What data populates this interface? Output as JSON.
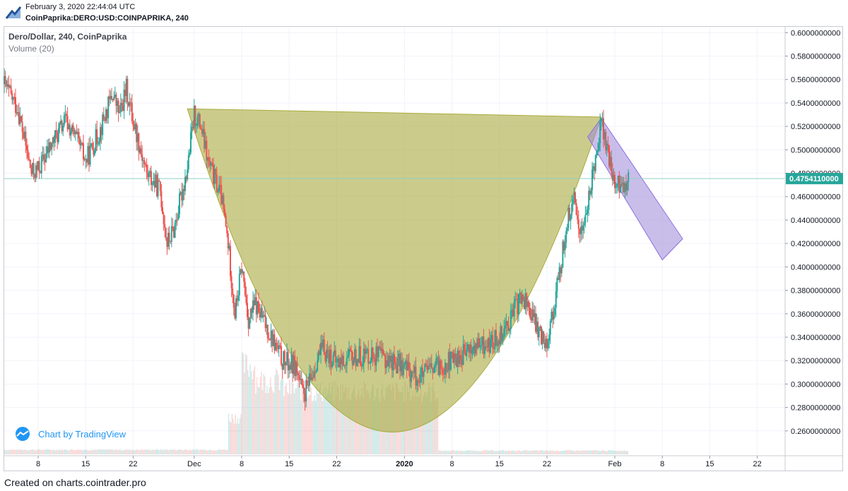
{
  "header": {
    "timestamp": "February 3, 2020 22:44:04 UTC",
    "symbol": "CoinPaprika:DERO:USD:COINPAPRIKA, 240",
    "logo_icon": "chart-arrow-logo-icon"
  },
  "legend": {
    "title": "Dero/Dollar, 240, CoinPaprika",
    "volume": "Volume (20)"
  },
  "watermark": {
    "label": "Chart by TradingView",
    "icon": "tradingview-cloud-icon"
  },
  "footer": {
    "text": "Created on charts.cointrader.pro"
  },
  "colors": {
    "up": "#26a69a",
    "down": "#ef5350",
    "cup_fill": "#a9aa3d",
    "channel_fill": "#9c88d9",
    "channel_stroke": "#8e6fe0",
    "price_label_bg": "#26a69a",
    "price_line": "#8fd0c7",
    "axis_text": "#131722"
  },
  "chart_data": {
    "type": "candlestick",
    "interval": "240",
    "x_range": [
      "2019-11-03",
      "2020-02-26"
    ],
    "ylim": [
      0.24,
      0.605
    ],
    "y_ticks": [
      "0.6000000000",
      "0.5800000000",
      "0.5600000000",
      "0.5400000000",
      "0.5200000000",
      "0.5000000000",
      "0.4800000000",
      "0.4600000000",
      "0.4400000000",
      "0.4200000000",
      "0.4000000000",
      "0.3800000000",
      "0.3600000000",
      "0.3400000000",
      "0.3200000000",
      "0.3000000000",
      "0.2800000000",
      "0.2600000000"
    ],
    "x_ticks": [
      {
        "date": "2019-11-08",
        "label": "8"
      },
      {
        "date": "2019-11-15",
        "label": "15"
      },
      {
        "date": "2019-11-22",
        "label": "22"
      },
      {
        "date": "2019-12-01",
        "label": "Dec"
      },
      {
        "date": "2019-12-08",
        "label": "8"
      },
      {
        "date": "2019-12-15",
        "label": "15"
      },
      {
        "date": "2019-12-22",
        "label": "22"
      },
      {
        "date": "2020-01-01",
        "label": "2020"
      },
      {
        "date": "2020-01-08",
        "label": "8"
      },
      {
        "date": "2020-01-15",
        "label": "15"
      },
      {
        "date": "2020-01-22",
        "label": "22"
      },
      {
        "date": "2020-02-01",
        "label": "Feb"
      },
      {
        "date": "2020-02-08",
        "label": "8"
      },
      {
        "date": "2020-02-15",
        "label": "15"
      },
      {
        "date": "2020-02-22",
        "label": "22"
      }
    ],
    "last_price": 0.475411,
    "last_price_label": "0.4754110000",
    "price_path": [
      {
        "date": "2019-11-03",
        "price": 0.556
      },
      {
        "date": "2019-11-05",
        "price": 0.535
      },
      {
        "date": "2019-11-07",
        "price": 0.48
      },
      {
        "date": "2019-11-08",
        "price": 0.483
      },
      {
        "date": "2019-11-10",
        "price": 0.505
      },
      {
        "date": "2019-11-12",
        "price": 0.525
      },
      {
        "date": "2019-11-14",
        "price": 0.505
      },
      {
        "date": "2019-11-15",
        "price": 0.49
      },
      {
        "date": "2019-11-17",
        "price": 0.515
      },
      {
        "date": "2019-11-19",
        "price": 0.548
      },
      {
        "date": "2019-11-20",
        "price": 0.53
      },
      {
        "date": "2019-11-21",
        "price": 0.552
      },
      {
        "date": "2019-11-22",
        "price": 0.525
      },
      {
        "date": "2019-11-24",
        "price": 0.48
      },
      {
        "date": "2019-11-26",
        "price": 0.465
      },
      {
        "date": "2019-11-27",
        "price": 0.42
      },
      {
        "date": "2019-11-28",
        "price": 0.432
      },
      {
        "date": "2019-11-30",
        "price": 0.485
      },
      {
        "date": "2019-12-01",
        "price": 0.53
      },
      {
        "date": "2019-12-02",
        "price": 0.52
      },
      {
        "date": "2019-12-03",
        "price": 0.49
      },
      {
        "date": "2019-12-05",
        "price": 0.46
      },
      {
        "date": "2019-12-06",
        "price": 0.42
      },
      {
        "date": "2019-12-07",
        "price": 0.36
      },
      {
        "date": "2019-12-08",
        "price": 0.4
      },
      {
        "date": "2019-12-09",
        "price": 0.355
      },
      {
        "date": "2019-12-10",
        "price": 0.368
      },
      {
        "date": "2019-12-12",
        "price": 0.345
      },
      {
        "date": "2019-12-14",
        "price": 0.32
      },
      {
        "date": "2019-12-16",
        "price": 0.315
      },
      {
        "date": "2019-12-17",
        "price": 0.29
      },
      {
        "date": "2019-12-18",
        "price": 0.3
      },
      {
        "date": "2019-12-19",
        "price": 0.32
      },
      {
        "date": "2019-12-20",
        "price": 0.33
      },
      {
        "date": "2019-12-22",
        "price": 0.318
      },
      {
        "date": "2019-12-24",
        "price": 0.322
      },
      {
        "date": "2019-12-27",
        "price": 0.326
      },
      {
        "date": "2019-12-30",
        "price": 0.32
      },
      {
        "date": "2020-01-01",
        "price": 0.315
      },
      {
        "date": "2020-01-03",
        "price": 0.305
      },
      {
        "date": "2020-01-05",
        "price": 0.312
      },
      {
        "date": "2020-01-08",
        "price": 0.32
      },
      {
        "date": "2020-01-11",
        "price": 0.33
      },
      {
        "date": "2020-01-14",
        "price": 0.335
      },
      {
        "date": "2020-01-16",
        "price": 0.35
      },
      {
        "date": "2020-01-18",
        "price": 0.372
      },
      {
        "date": "2020-01-19",
        "price": 0.37
      },
      {
        "date": "2020-01-20",
        "price": 0.355
      },
      {
        "date": "2020-01-21",
        "price": 0.342
      },
      {
        "date": "2020-01-22",
        "price": 0.338
      },
      {
        "date": "2020-01-23",
        "price": 0.365
      },
      {
        "date": "2020-01-24",
        "price": 0.4
      },
      {
        "date": "2020-01-25",
        "price": 0.44
      },
      {
        "date": "2020-01-26",
        "price": 0.455
      },
      {
        "date": "2020-01-27",
        "price": 0.43
      },
      {
        "date": "2020-01-28",
        "price": 0.45
      },
      {
        "date": "2020-01-29",
        "price": 0.49
      },
      {
        "date": "2020-01-30",
        "price": 0.525
      },
      {
        "date": "2020-01-31",
        "price": 0.495
      },
      {
        "date": "2020-02-01",
        "price": 0.47
      },
      {
        "date": "2020-02-02",
        "price": 0.468
      },
      {
        "date": "2020-02-03",
        "price": 0.4754
      }
    ],
    "volume": {
      "ylim": [
        0,
        1
      ],
      "bars": [
        {
          "from": "2019-11-03",
          "to": "2019-12-06",
          "level": 0.05
        },
        {
          "from": "2019-12-06",
          "to": "2019-12-08",
          "level": 0.4
        },
        {
          "from": "2019-12-08",
          "to": "2019-12-10",
          "level": 0.95
        },
        {
          "from": "2019-12-10",
          "to": "2019-12-14",
          "level": 0.8
        },
        {
          "from": "2019-12-14",
          "to": "2019-12-18",
          "level": 0.7
        },
        {
          "from": "2019-12-18",
          "to": "2020-01-06",
          "level": 0.68
        },
        {
          "from": "2020-01-06",
          "to": "2020-02-03",
          "level": 0.04
        }
      ]
    },
    "drawings": {
      "cup": {
        "left_rim": {
          "date": "2019-11-30",
          "price": 0.535
        },
        "right_rim": {
          "date": "2020-01-30",
          "price": 0.528
        },
        "bottom": {
          "date": "2019-12-30",
          "price": 0.259
        }
      },
      "channel": {
        "top_left": {
          "date": "2020-01-28",
          "price": 0.511
        },
        "top_right": {
          "date": "2020-01-30",
          "price": 0.527
        },
        "bottom_right": {
          "date": "2020-02-11",
          "price": 0.424
        },
        "bottom_left": {
          "date": "2020-02-08",
          "price": 0.406
        }
      }
    }
  }
}
